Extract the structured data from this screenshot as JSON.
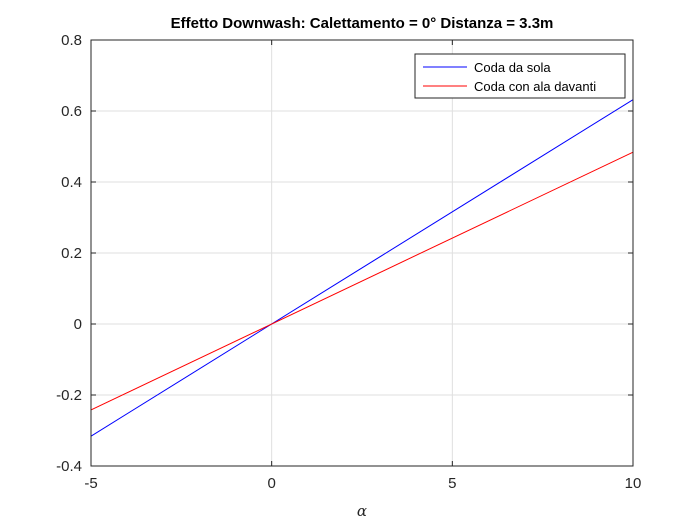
{
  "chart_data": {
    "type": "line",
    "title": "Effetto Downwash: Calettamento = 0° Distanza = 3.3m",
    "xlabel": "α",
    "ylabel": "",
    "xlim": [
      -5,
      10
    ],
    "ylim": [
      -0.4,
      0.8
    ],
    "xticks": [
      -5,
      0,
      5,
      10
    ],
    "yticks": [
      -0.4,
      -0.2,
      0,
      0.2,
      0.4,
      0.6,
      0.8
    ],
    "xtick_labels": [
      "-5",
      "0",
      "5",
      "10"
    ],
    "ytick_labels": [
      "-0.4",
      "-0.2",
      "0",
      "0.2",
      "0.4",
      "0.6",
      "0.8"
    ],
    "grid": true,
    "legend": "top-right",
    "series": [
      {
        "name": "Coda da sola",
        "color": "#0000ff",
        "x": [
          -5,
          10
        ],
        "y": [
          -0.316,
          0.632
        ]
      },
      {
        "name": "Coda con ala davanti",
        "color": "#ff0000",
        "x": [
          -5,
          10
        ],
        "y": [
          -0.242,
          0.484
        ]
      }
    ]
  }
}
